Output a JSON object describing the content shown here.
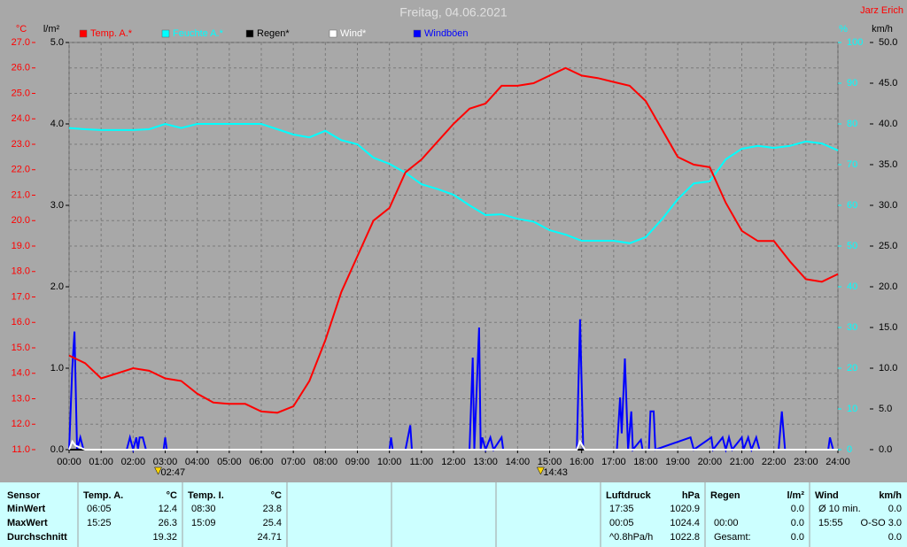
{
  "chart_data": {
    "type": "line",
    "title": "Freitag, 04.06.2021",
    "author": "Jarz Erich",
    "y_label": "°C",
    "y2_label": "l/m²",
    "y3_label": "%",
    "y4_label": "km/h",
    "xlim": [
      0,
      24
    ],
    "xticks": [
      {
        "value": 0,
        "label": "00:00"
      },
      {
        "value": 1,
        "label": "01:00"
      },
      {
        "value": 2,
        "label": "02:00"
      },
      {
        "value": 3,
        "label": "03:00"
      },
      {
        "value": 4,
        "label": "04:00"
      },
      {
        "value": 5,
        "label": "05:00"
      },
      {
        "value": 6,
        "label": "06:00"
      },
      {
        "value": 7,
        "label": "07:00"
      },
      {
        "value": 8,
        "label": "08:00"
      },
      {
        "value": 9,
        "label": "09:00"
      },
      {
        "value": 10,
        "label": "10:00"
      },
      {
        "value": 11,
        "label": "11:00"
      },
      {
        "value": 12,
        "label": "12:00"
      },
      {
        "value": 13,
        "label": "13:00"
      },
      {
        "value": 14,
        "label": "14:00"
      },
      {
        "value": 15,
        "label": "15:00"
      },
      {
        "value": 16,
        "label": "16:00"
      },
      {
        "value": 17,
        "label": "17:00"
      },
      {
        "value": 18,
        "label": "18:00"
      },
      {
        "value": 19,
        "label": "19:00"
      },
      {
        "value": 20,
        "label": "20:00"
      },
      {
        "value": 21,
        "label": "21:00"
      },
      {
        "value": 22,
        "label": "22:00"
      },
      {
        "value": 23,
        "label": "23:00"
      },
      {
        "value": 24,
        "label": "24:00"
      }
    ],
    "ylim": [
      11,
      27
    ],
    "yticks": [
      {
        "value": 11,
        "label": "11.0"
      },
      {
        "value": 12,
        "label": "12.0"
      },
      {
        "value": 13,
        "label": "13.0"
      },
      {
        "value": 14,
        "label": "14.0"
      },
      {
        "value": 15,
        "label": "15.0"
      },
      {
        "value": 16,
        "label": "16.0"
      },
      {
        "value": 17,
        "label": "17.0"
      },
      {
        "value": 18,
        "label": "18.0"
      },
      {
        "value": 19,
        "label": "19.0"
      },
      {
        "value": 20,
        "label": "20.0"
      },
      {
        "value": 21,
        "label": "21.0"
      },
      {
        "value": 22,
        "label": "22.0"
      },
      {
        "value": 23,
        "label": "23.0"
      },
      {
        "value": 24,
        "label": "24.0"
      },
      {
        "value": 25,
        "label": "25.0"
      },
      {
        "value": 26,
        "label": "26.0"
      },
      {
        "value": 27,
        "label": "27.0"
      }
    ],
    "y2lim": [
      0,
      5
    ],
    "y2ticks": [
      {
        "value": 0,
        "label": "0.0"
      },
      {
        "value": 1,
        "label": "1.0"
      },
      {
        "value": 2,
        "label": "2.0"
      },
      {
        "value": 3,
        "label": "3.0"
      },
      {
        "value": 4,
        "label": "4.0"
      },
      {
        "value": 5,
        "label": "5.0"
      }
    ],
    "y3lim": [
      0,
      100
    ],
    "y3ticks": [
      0,
      10,
      20,
      30,
      40,
      50,
      60,
      70,
      80,
      90,
      100
    ],
    "y4lim": [
      0,
      50
    ],
    "y4ticks": [
      {
        "value": 0,
        "label": "0.0"
      },
      {
        "value": 5,
        "label": "5.0"
      },
      {
        "value": 10,
        "label": "10.0"
      },
      {
        "value": 15,
        "label": "15.0"
      },
      {
        "value": 20,
        "label": "20.0"
      },
      {
        "value": 25,
        "label": "25.0"
      },
      {
        "value": 30,
        "label": "30.0"
      },
      {
        "value": 35,
        "label": "35.0"
      },
      {
        "value": 40,
        "label": "40.0"
      },
      {
        "value": 45,
        "label": "45.0"
      },
      {
        "value": 50,
        "label": "50.0"
      }
    ],
    "grid": true,
    "series": [
      {
        "name": "Temp. A.*",
        "color": "#ff0000",
        "axis": "y",
        "x": [
          0,
          0.5,
          1,
          1.5,
          2,
          2.5,
          3,
          3.5,
          4,
          4.5,
          5,
          5.5,
          6,
          6.5,
          7,
          7.5,
          8,
          8.5,
          9,
          9.5,
          10,
          10.5,
          11,
          11.5,
          12,
          12.5,
          13,
          13.5,
          14,
          14.5,
          15,
          15.5,
          16,
          16.5,
          17,
          17.5,
          18,
          18.5,
          19,
          19.5,
          20,
          20.5,
          21,
          21.5,
          22,
          22.5,
          23,
          23.5,
          24
        ],
        "values": [
          14.7,
          14.4,
          13.8,
          14.0,
          14.2,
          14.1,
          13.8,
          13.7,
          13.2,
          12.85,
          12.8,
          12.8,
          12.5,
          12.45,
          12.7,
          13.7,
          15.3,
          17.2,
          18.6,
          20.0,
          20.5,
          21.9,
          22.4,
          23.1,
          23.8,
          24.4,
          24.6,
          25.3,
          25.3,
          25.4,
          25.7,
          26.0,
          25.7,
          25.6,
          25.45,
          25.3,
          24.7,
          23.6,
          22.5,
          22.2,
          22.1,
          20.7,
          19.6,
          19.2,
          19.2,
          18.4,
          17.7,
          17.6,
          17.9
        ]
      },
      {
        "name": "Feuchte A.*",
        "color": "#00ffff",
        "axis": "y3",
        "x": [
          0,
          0.5,
          1,
          1.5,
          2,
          2.5,
          3,
          3.5,
          4,
          4.5,
          5,
          5.5,
          6,
          6.5,
          7,
          7.5,
          8,
          8.5,
          9,
          9.5,
          10,
          10.5,
          11,
          11.5,
          12,
          12.5,
          13,
          13.5,
          14,
          14.5,
          15,
          15.5,
          16,
          16.5,
          17,
          17.5,
          18,
          18.5,
          19,
          19.5,
          20,
          20.5,
          21,
          21.5,
          22,
          22.5,
          23,
          23.5,
          24
        ],
        "values": [
          79,
          78.7,
          78.5,
          78.5,
          78.5,
          78.7,
          80,
          79,
          80,
          80,
          80,
          80,
          80,
          78.7,
          77.4,
          76.7,
          78.3,
          76,
          75,
          71.7,
          70.2,
          68,
          65.2,
          64,
          62.6,
          60,
          57.6,
          57.8,
          56.7,
          56,
          53.9,
          52.8,
          51.3,
          51.3,
          51.3,
          50.7,
          52.2,
          56.5,
          61.5,
          65.4,
          65.9,
          71.3,
          73.9,
          74.6,
          74.1,
          74.6,
          75.7,
          75.2,
          73.5
        ]
      },
      {
        "name": "Regen*",
        "color": "#000000",
        "axis": "y2",
        "x": [
          0,
          24
        ],
        "values": [
          0,
          0
        ]
      },
      {
        "name": "Wind*",
        "color": "#ffffff",
        "axis": "y4",
        "x": [
          0,
          0.1,
          0.2,
          0.5,
          15.85,
          15.95,
          16.1,
          24
        ],
        "values": [
          0,
          1,
          0.5,
          0,
          0,
          1,
          0,
          0
        ]
      },
      {
        "name": "Windböen",
        "color": "#0000ff",
        "axis": "y4",
        "x": [
          0,
          0.1,
          0.17,
          0.25,
          0.35,
          0.45,
          1.8,
          1.9,
          2.0,
          2.1,
          2.15,
          2.2,
          2.3,
          2.4,
          2.95,
          3.0,
          3.05,
          10.0,
          10.05,
          10.1,
          10.5,
          10.65,
          10.7,
          12.5,
          12.6,
          12.65,
          12.8,
          12.85,
          12.9,
          13.0,
          13.15,
          13.25,
          13.5,
          13.55,
          15.85,
          15.95,
          16.05,
          17.1,
          17.2,
          17.25,
          17.35,
          17.45,
          17.55,
          17.6,
          17.85,
          17.9,
          18.1,
          18.15,
          18.25,
          18.3,
          19.4,
          19.5,
          20.05,
          20.1,
          20.4,
          20.5,
          20.6,
          20.7,
          21.0,
          21.05,
          21.2,
          21.3,
          21.45,
          21.55,
          22.15,
          22.25,
          22.35,
          23.7,
          23.75,
          23.85,
          24
        ],
        "values": [
          0,
          10,
          14.5,
          0,
          1.5,
          0,
          0,
          1.5,
          0,
          1.5,
          0,
          1.5,
          1.5,
          0,
          0,
          1.5,
          0,
          0,
          1.5,
          0,
          0,
          3,
          0,
          0,
          11.3,
          0,
          15,
          0,
          1.5,
          0,
          1.5,
          0,
          1.5,
          0,
          0,
          16,
          0,
          0,
          6.4,
          2,
          11.2,
          0,
          4.7,
          0,
          1.2,
          0,
          0,
          4.7,
          4.7,
          0,
          1.5,
          0,
          1.5,
          0,
          1.5,
          0,
          1.5,
          0,
          1.5,
          0,
          1.5,
          0,
          1.5,
          0,
          0,
          4.7,
          0,
          0,
          1.5,
          0,
          0
        ]
      }
    ],
    "annotations": [
      {
        "text": "02:47",
        "x": 2.78
      },
      {
        "text": "14:43",
        "x": 14.72
      }
    ]
  },
  "stats": {
    "sensor": {
      "header": "Sensor",
      "rows": [
        "MinWert",
        "MaxWert",
        "Durchschnitt"
      ]
    },
    "columns": [
      {
        "header": "Temp. A.",
        "unit": "°C",
        "rows": [
          {
            "time": "06:05",
            "value": "12.4"
          },
          {
            "time": "15:25",
            "value": "26.3"
          },
          {
            "value": "19.32"
          }
        ]
      },
      {
        "header": "Temp. I.",
        "unit": "°C",
        "rows": [
          {
            "time": "08:30",
            "value": "23.8"
          },
          {
            "time": "15:09",
            "value": "25.4"
          },
          {
            "value": "24.71"
          }
        ]
      },
      {
        "header": "Luftdruck",
        "unit": "hPa",
        "rows": [
          {
            "time": "17:35",
            "value": "1020.9"
          },
          {
            "time": "00:05",
            "value": "1024.4"
          },
          {
            "time": "^0.8hPa/h",
            "value": "1022.8"
          }
        ]
      },
      {
        "header": "Regen",
        "unit": "l/m²",
        "rows": [
          {
            "value": "0.0"
          },
          {
            "time": "00:00",
            "value": "0.0"
          },
          {
            "time": "Gesamt:",
            "value": "0.0"
          }
        ]
      },
      {
        "header": "Wind",
        "unit": "km/h",
        "rows": [
          {
            "time": "Ø 10 min.",
            "value": "0.0"
          },
          {
            "time": "15:55",
            "value": "O-SO 3.0"
          },
          {
            "value": "0.0"
          }
        ]
      }
    ]
  }
}
